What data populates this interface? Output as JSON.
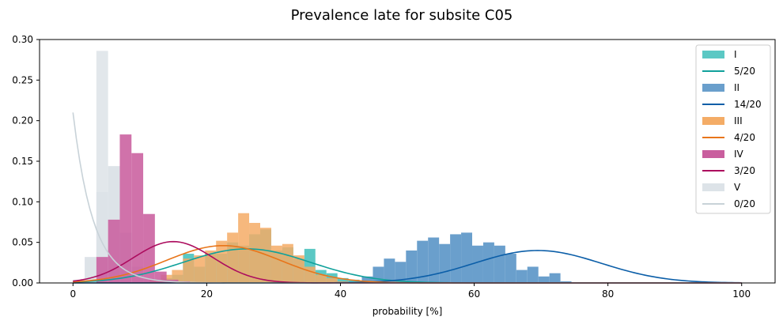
{
  "chart_data": {
    "type": "histogram-with-density",
    "title": "Prevalence late for subsite C05",
    "xlabel": "probability [%]",
    "ylabel": "",
    "xlim": [
      -5,
      105
    ],
    "ylim": [
      0,
      0.3
    ],
    "xticks": [
      0,
      20,
      40,
      60,
      80,
      100
    ],
    "yticks": [
      0.0,
      0.05,
      0.1,
      0.15,
      0.2,
      0.25,
      0.3
    ],
    "xtick_labels": [
      "0",
      "20",
      "40",
      "60",
      "80",
      "100"
    ],
    "ytick_labels": [
      "0.00",
      "0.05",
      "0.10",
      "0.15",
      "0.20",
      "0.25",
      "0.30"
    ],
    "legend_position": "top-right",
    "histograms": [
      {
        "name": "V",
        "color": "#dde3e8",
        "opacity": 1.0,
        "bin_width": 1.75,
        "bins": [
          [
            0.0,
            0.004
          ],
          [
            1.75,
            0.032
          ],
          [
            3.5,
            0.112
          ],
          [
            5.25,
            0.144
          ],
          [
            7.0,
            0.062
          ],
          [
            8.75,
            0.02
          ],
          [
            10.5,
            0.006
          ],
          [
            12.25,
            0.002
          ]
        ]
      },
      {
        "name": "I",
        "color": "#5bc8c4",
        "opacity": 1.0,
        "bin_width": 1.65,
        "bins": [
          [
            11.5,
            0.004
          ],
          [
            13.15,
            0.006
          ],
          [
            14.8,
            0.01
          ],
          [
            16.45,
            0.036
          ],
          [
            18.1,
            0.02
          ],
          [
            19.75,
            0.036
          ],
          [
            21.4,
            0.036
          ],
          [
            23.05,
            0.05
          ],
          [
            24.7,
            0.046
          ],
          [
            26.35,
            0.06
          ],
          [
            28.0,
            0.066
          ],
          [
            29.65,
            0.04
          ],
          [
            31.3,
            0.044
          ],
          [
            32.95,
            0.03
          ],
          [
            34.6,
            0.042
          ],
          [
            36.25,
            0.016
          ],
          [
            37.9,
            0.012
          ],
          [
            39.55,
            0.006
          ],
          [
            41.2,
            0.004
          ],
          [
            42.85,
            0.002
          ],
          [
            44.5,
            0.002
          ]
        ]
      },
      {
        "name": "II",
        "color": "#6a9fcc",
        "opacity": 1.0,
        "bin_width": 1.65,
        "bins": [
          [
            43.2,
            0.008
          ],
          [
            44.85,
            0.02
          ],
          [
            46.5,
            0.03
          ],
          [
            48.15,
            0.026
          ],
          [
            49.8,
            0.04
          ],
          [
            51.45,
            0.052
          ],
          [
            53.1,
            0.056
          ],
          [
            54.75,
            0.048
          ],
          [
            56.4,
            0.06
          ],
          [
            58.05,
            0.062
          ],
          [
            59.7,
            0.046
          ],
          [
            61.35,
            0.05
          ],
          [
            63.0,
            0.046
          ],
          [
            64.65,
            0.036
          ],
          [
            66.3,
            0.016
          ],
          [
            67.95,
            0.02
          ],
          [
            69.6,
            0.008
          ],
          [
            71.25,
            0.012
          ],
          [
            72.9,
            0.002
          ]
        ]
      },
      {
        "name": "III",
        "color": "#f4ac66",
        "opacity": 0.85,
        "bin_width": 1.65,
        "bins": [
          [
            11.5,
            0.004
          ],
          [
            13.15,
            0.01
          ],
          [
            14.8,
            0.016
          ],
          [
            16.45,
            0.03
          ],
          [
            18.1,
            0.034
          ],
          [
            19.75,
            0.04
          ],
          [
            21.4,
            0.052
          ],
          [
            23.05,
            0.062
          ],
          [
            24.7,
            0.086
          ],
          [
            26.35,
            0.074
          ],
          [
            28.0,
            0.068
          ],
          [
            29.65,
            0.046
          ],
          [
            31.3,
            0.048
          ],
          [
            32.95,
            0.034
          ],
          [
            34.6,
            0.02
          ],
          [
            36.25,
            0.01
          ],
          [
            37.9,
            0.006
          ],
          [
            39.55,
            0.002
          ]
        ]
      },
      {
        "name": "IV",
        "color": "#c95e9e",
        "opacity": 0.88,
        "bin_width": 1.75,
        "bins": [
          [
            3.5,
            0.032
          ],
          [
            5.25,
            0.078
          ],
          [
            7.0,
            0.183
          ],
          [
            8.75,
            0.16
          ],
          [
            10.5,
            0.085
          ],
          [
            12.25,
            0.014
          ],
          [
            14.0,
            0.004
          ],
          [
            15.75,
            0.002
          ]
        ]
      }
    ],
    "extra_bars": [
      {
        "name": "V-peak",
        "color": "#dde3e8",
        "opacity": 0.85,
        "bins": [
          [
            3.5,
            0.286
          ]
        ],
        "bin_width": 1.75
      }
    ],
    "curves": [
      {
        "name": "5/20",
        "color": "#10a19b",
        "kind": "gauss",
        "mu": 26,
        "sigma": 9.5,
        "amp": 0.042,
        "x_range": [
          0,
          100
        ]
      },
      {
        "name": "14/20",
        "color": "#0b5ea8",
        "kind": "gauss",
        "mu": 69.5,
        "sigma": 9.5,
        "amp": 0.04,
        "x_range": [
          0,
          100
        ]
      },
      {
        "name": "4/20",
        "color": "#e8751a",
        "kind": "gauss",
        "mu": 22.5,
        "sigma": 8.5,
        "amp": 0.046,
        "x_range": [
          0,
          100
        ]
      },
      {
        "name": "3/20",
        "color": "#ac0c5e",
        "kind": "gauss",
        "mu": 15,
        "sigma": 6,
        "amp": 0.051,
        "x_range": [
          0,
          100
        ]
      },
      {
        "name": "0/20",
        "color": "#c8d2d8",
        "kind": "exp",
        "y0": 0.21,
        "rate": 0.33,
        "x_range": [
          0,
          100
        ]
      }
    ],
    "legend": [
      {
        "label": "I",
        "kind": "patch",
        "color": "#5bc8c4"
      },
      {
        "label": "5/20",
        "kind": "line",
        "color": "#10a19b"
      },
      {
        "label": "II",
        "kind": "patch",
        "color": "#6a9fcc"
      },
      {
        "label": "14/20",
        "kind": "line",
        "color": "#0b5ea8"
      },
      {
        "label": "III",
        "kind": "patch",
        "color": "#f4ac66"
      },
      {
        "label": "4/20",
        "kind": "line",
        "color": "#e8751a"
      },
      {
        "label": "IV",
        "kind": "patch",
        "color": "#c95e9e"
      },
      {
        "label": "3/20",
        "kind": "line",
        "color": "#ac0c5e"
      },
      {
        "label": "V",
        "kind": "patch",
        "color": "#dde3e8"
      },
      {
        "label": "0/20",
        "kind": "line",
        "color": "#c8d2d8"
      }
    ]
  }
}
